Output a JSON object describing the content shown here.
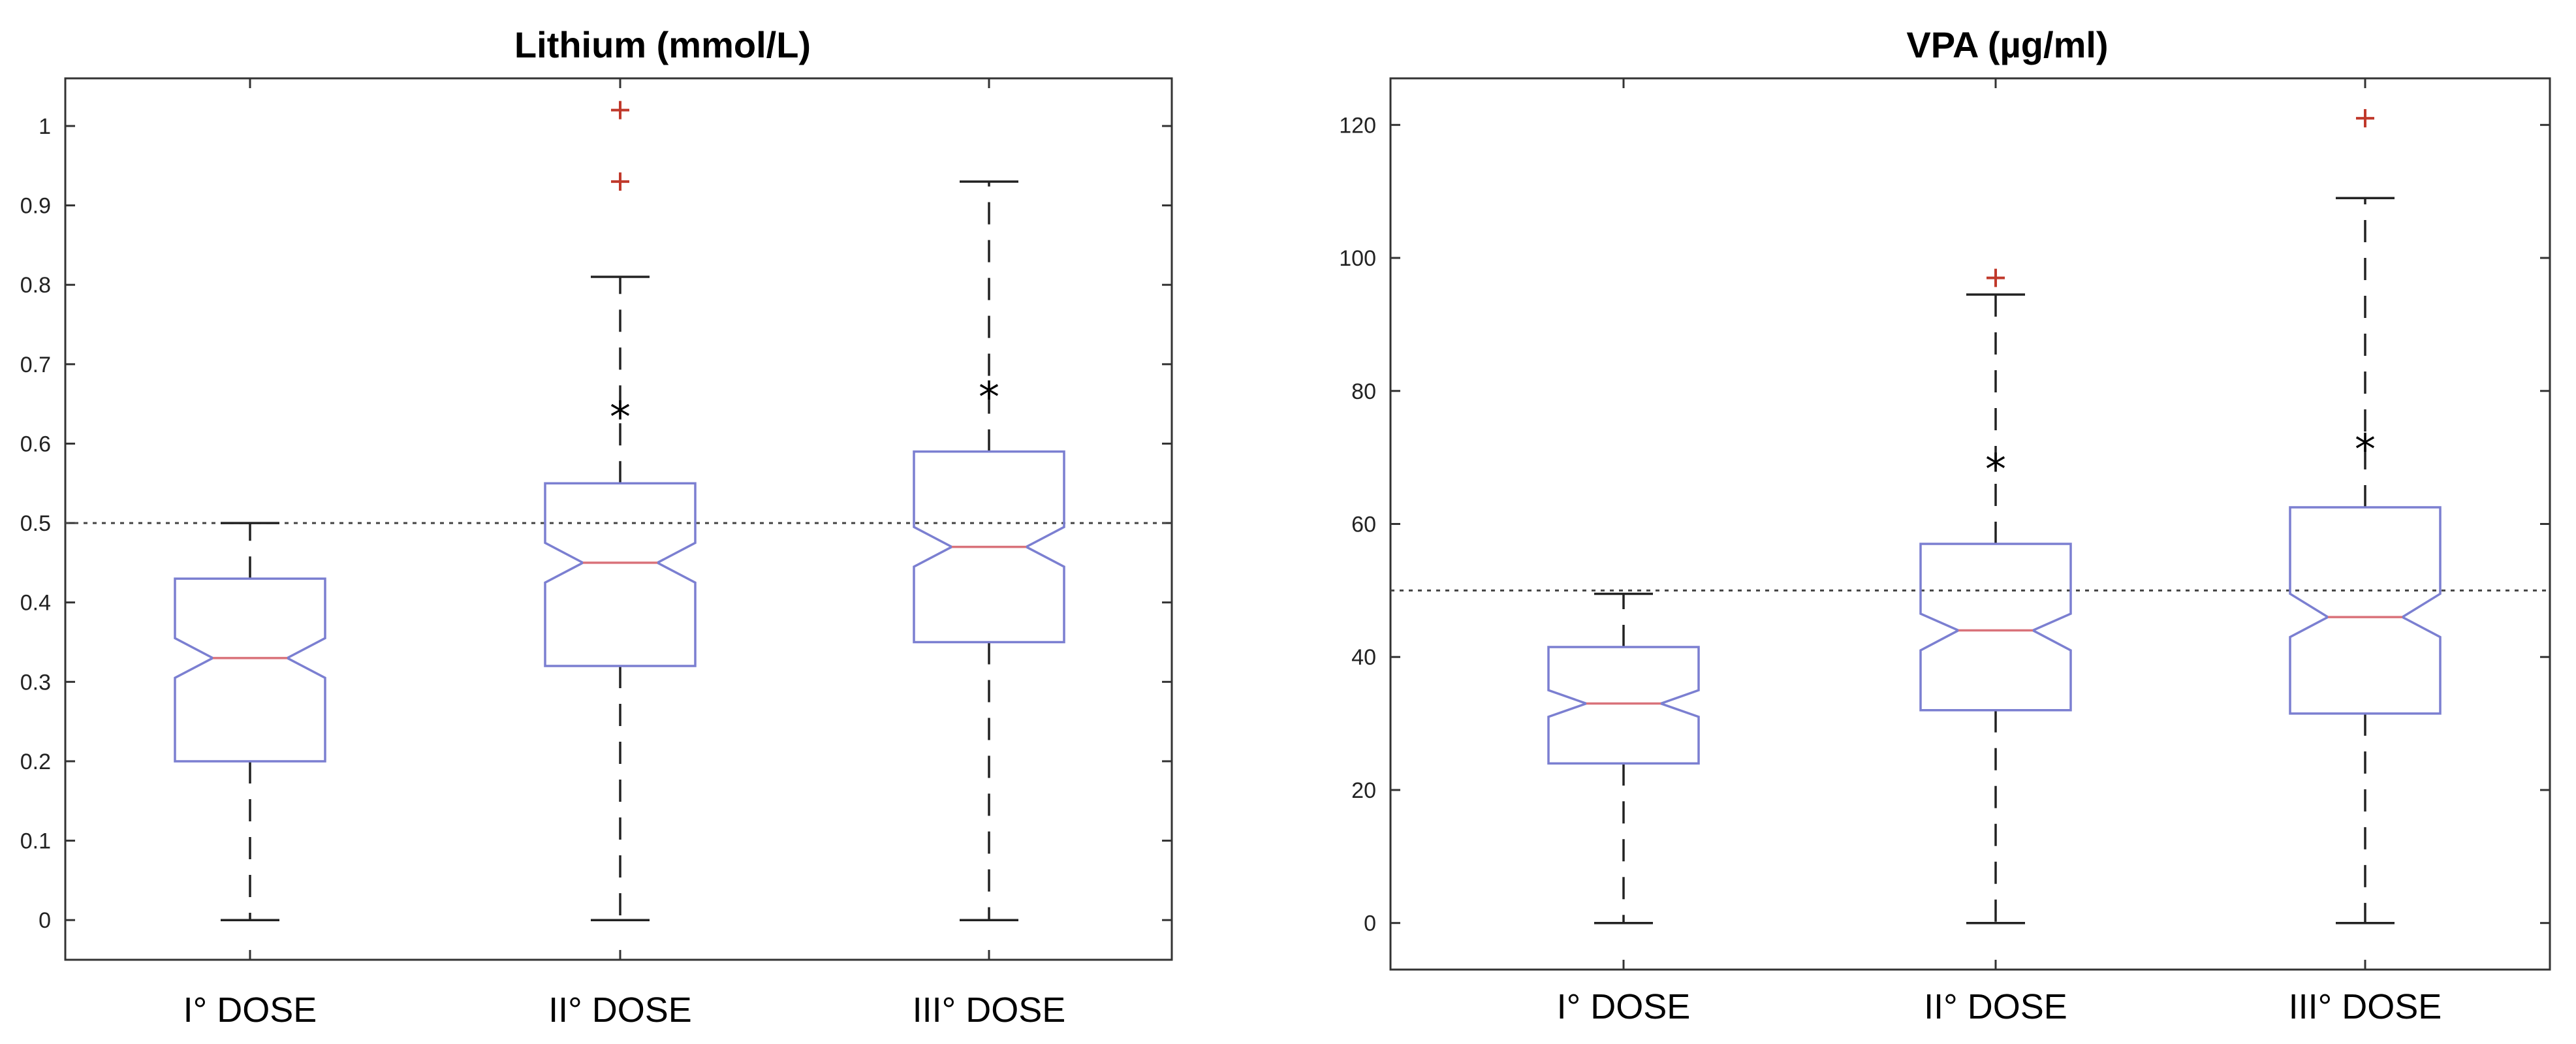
{
  "chart_data": [
    {
      "type": "box",
      "title": "Lithium (mmol/L)",
      "categories": [
        "I° DOSE",
        "II° DOSE",
        "III° DOSE"
      ],
      "ylim": [
        -0.05,
        1.06
      ],
      "yticks": [
        0,
        0.1,
        0.2,
        0.3,
        0.4,
        0.5,
        0.6,
        0.7,
        0.8,
        0.9,
        1
      ],
      "ytick_labels": [
        "0",
        "0.1",
        "0.2",
        "0.3",
        "0.4",
        "0.5",
        "0.6",
        "0.7",
        "0.8",
        "0.9",
        "1"
      ],
      "reference_line": 0.5,
      "notched": true,
      "boxes": [
        {
          "min": 0,
          "q1": 0.2,
          "median": 0.33,
          "q3": 0.43,
          "max": 0.5,
          "notch_low": 0.305,
          "notch_high": 0.355,
          "outliers": []
        },
        {
          "min": 0,
          "q1": 0.32,
          "median": 0.45,
          "q3": 0.55,
          "max": 0.81,
          "notch_low": 0.425,
          "notch_high": 0.475,
          "outliers": [
            0.93,
            1.02
          ]
        },
        {
          "min": 0,
          "q1": 0.35,
          "median": 0.47,
          "q3": 0.59,
          "max": 0.93,
          "notch_low": 0.445,
          "notch_high": 0.495,
          "outliers": []
        }
      ],
      "annotations": [
        {
          "category": "II° DOSE",
          "text": "*",
          "y": 0.64
        },
        {
          "category": "III° DOSE",
          "text": "*",
          "y": 0.665
        }
      ],
      "colors": {
        "box": "#7b7fd1",
        "median": "#d9727a",
        "outlier": "#c0392b",
        "whisker": "#222222"
      }
    },
    {
      "type": "box",
      "title": "VPA (µg/ml)",
      "categories": [
        "I° DOSE",
        "II° DOSE",
        "III° DOSE"
      ],
      "ylim": [
        -7,
        127
      ],
      "yticks": [
        0,
        20,
        40,
        60,
        80,
        100,
        120
      ],
      "ytick_labels": [
        "0",
        "20",
        "40",
        "60",
        "80",
        "100",
        "120"
      ],
      "reference_line": 50,
      "notched": true,
      "boxes": [
        {
          "min": 0,
          "q1": 24,
          "median": 33,
          "q3": 41.5,
          "max": 49.5,
          "notch_low": 31,
          "notch_high": 35,
          "outliers": []
        },
        {
          "min": 0,
          "q1": 32,
          "median": 44,
          "q3": 57,
          "max": 94.5,
          "notch_low": 41,
          "notch_high": 46.5,
          "outliers": [
            97
          ]
        },
        {
          "min": 0,
          "q1": 31.5,
          "median": 46,
          "q3": 62.5,
          "max": 109,
          "notch_low": 43,
          "notch_high": 49.5,
          "outliers": [
            121
          ]
        }
      ],
      "annotations": [
        {
          "category": "II° DOSE",
          "text": "*",
          "y": 69
        },
        {
          "category": "III° DOSE",
          "text": "*",
          "y": 72
        }
      ],
      "colors": {
        "box": "#7b7fd1",
        "median": "#d9727a",
        "outlier": "#c0392b",
        "whisker": "#222222"
      }
    }
  ]
}
